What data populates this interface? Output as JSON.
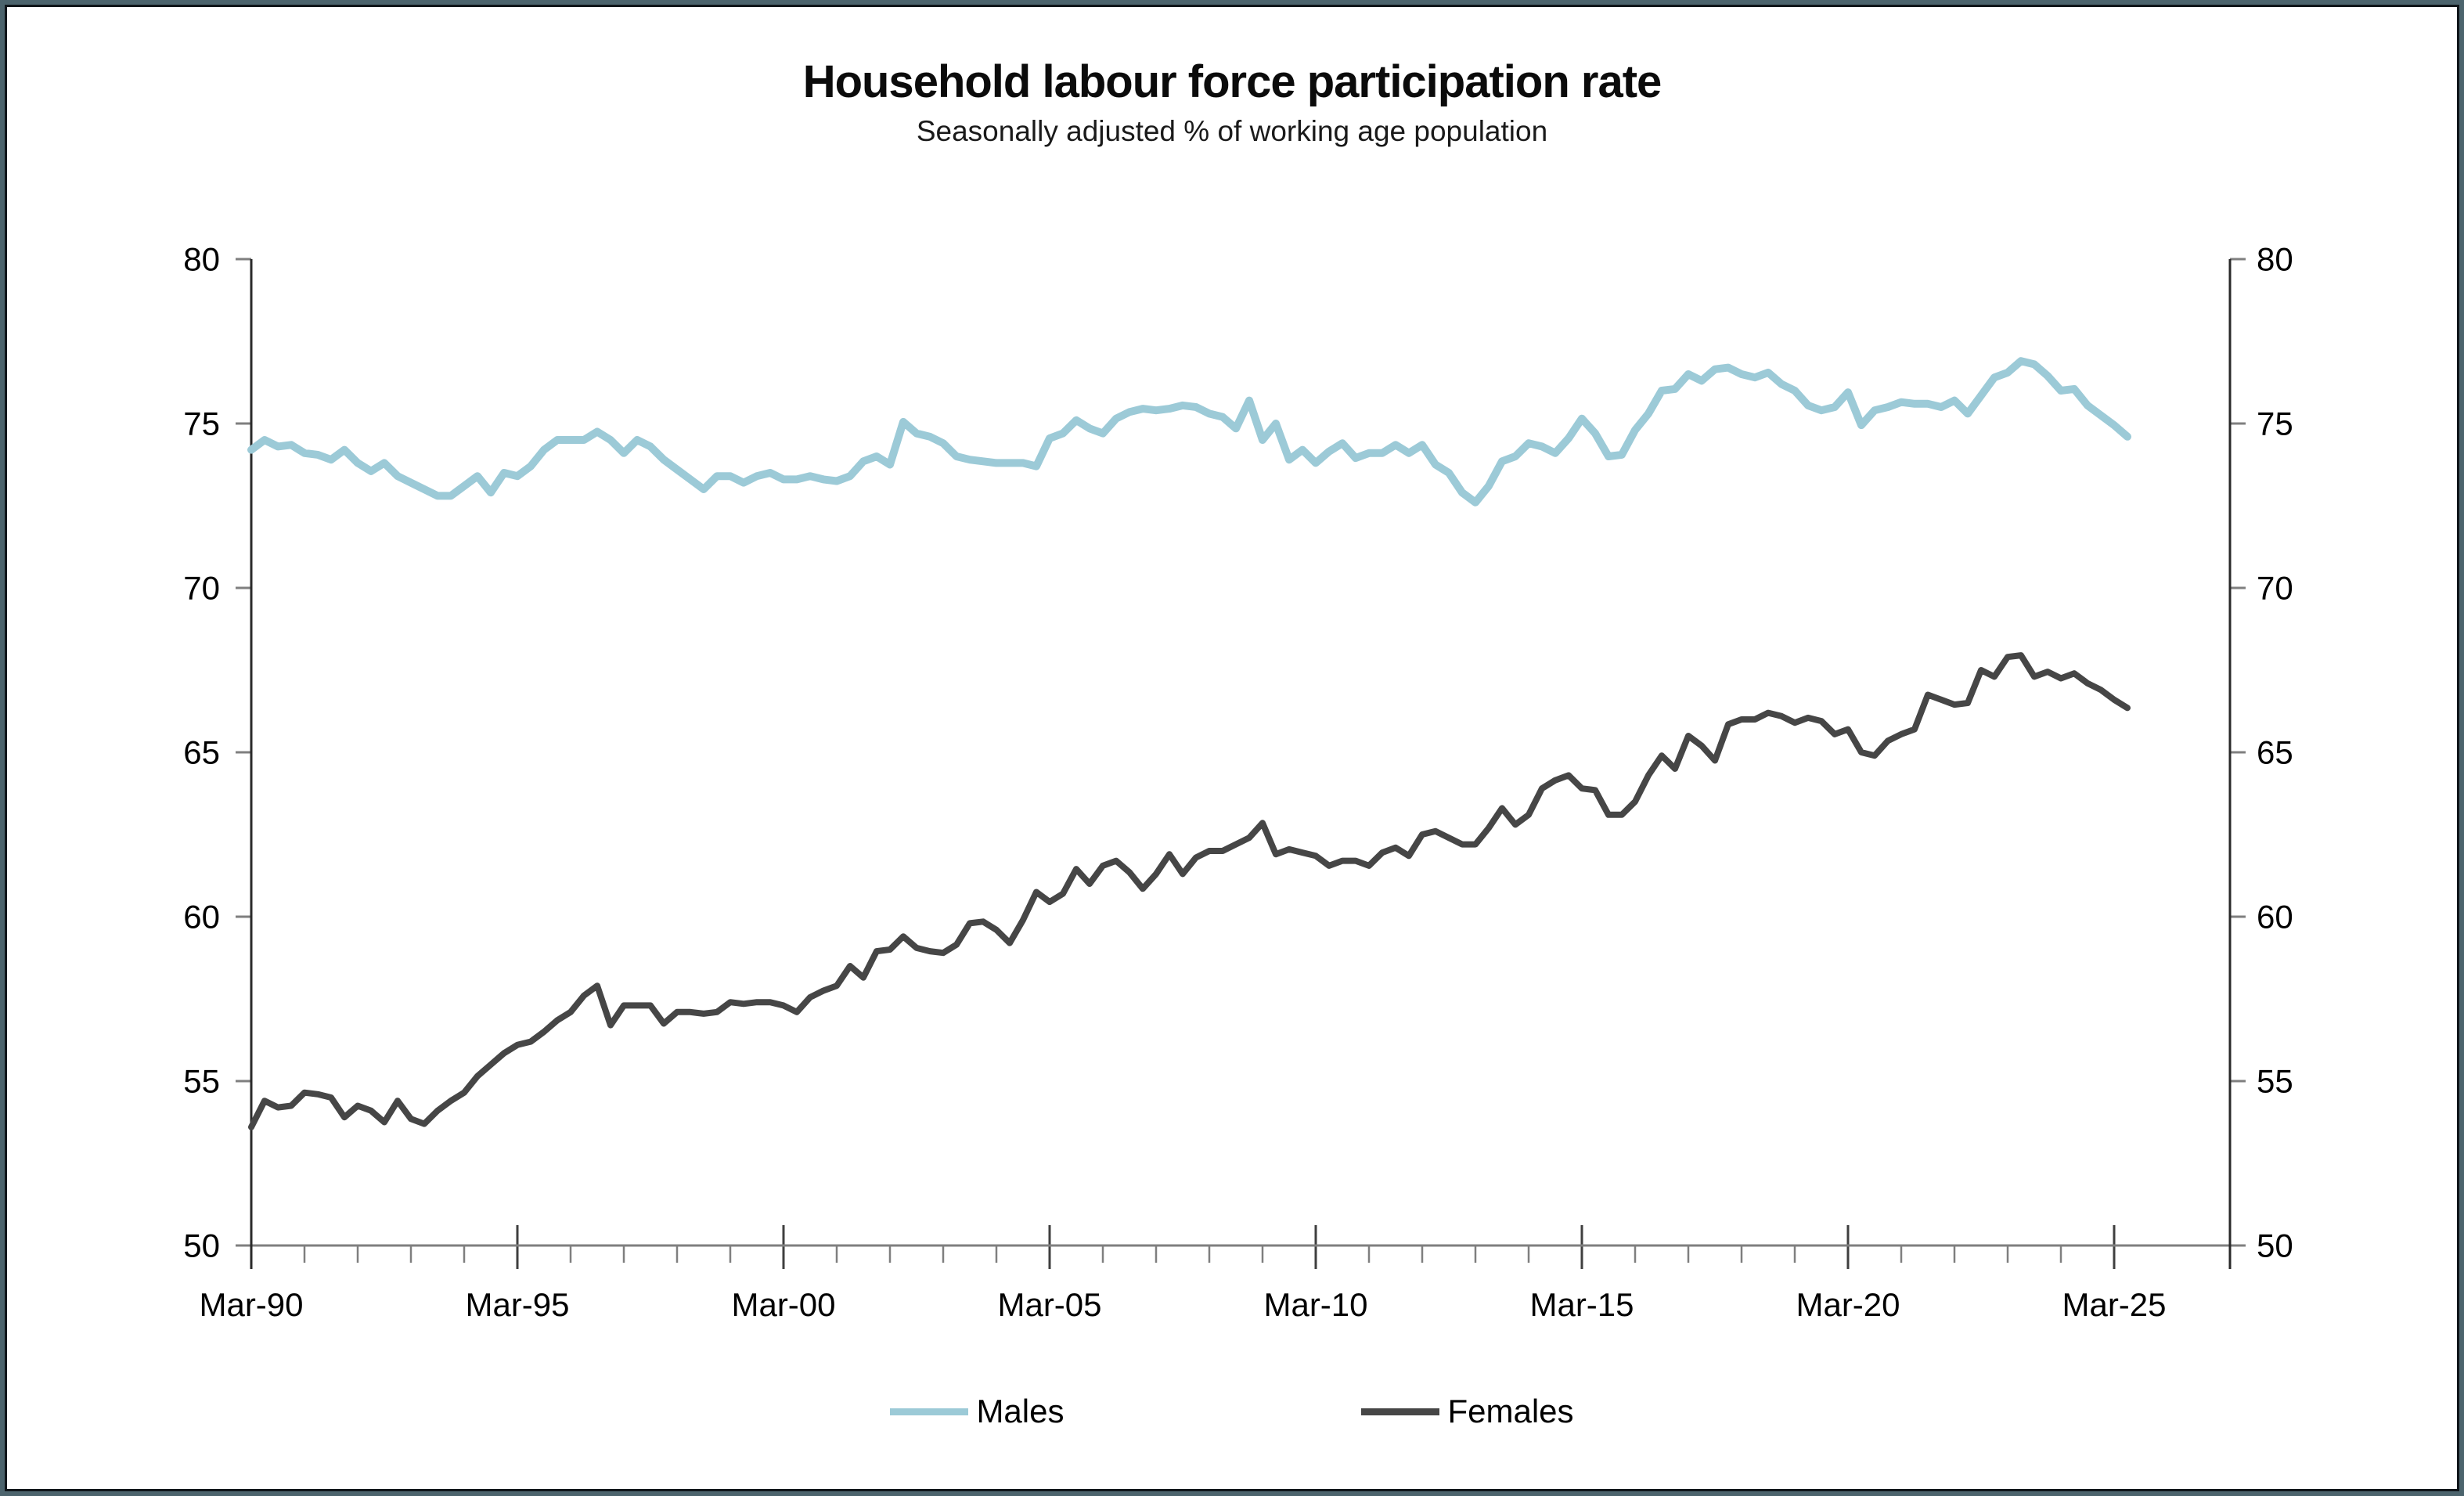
{
  "frame": {
    "outer_border_color": "#4c646d",
    "inner_border_color": "#10161a",
    "background": "#ffffff"
  },
  "header": {
    "title": "Household labour force participation rate",
    "subtitle": "Seasonally adjusted % of working age population"
  },
  "chart_data": {
    "type": "line",
    "title": "Household labour force participation rate",
    "subtitle": "Seasonally adjusted % of working age population",
    "xlabel": "",
    "ylabel": "",
    "ylim": [
      50,
      80
    ],
    "y_ticks": [
      50,
      55,
      60,
      65,
      70,
      75,
      80
    ],
    "y_axis_sides": "both",
    "grid": false,
    "legend_position": "bottom",
    "axis_color": "#2a2a2a",
    "tick_color": "#7f7f7f",
    "x_start": "Mar-90",
    "x_end": "Jun-25",
    "frequency": "quarterly",
    "x_tick_labels": [
      "Mar-90",
      "Mar-95",
      "Mar-00",
      "Mar-05",
      "Mar-10",
      "Mar-15",
      "Mar-20",
      "Mar-25"
    ],
    "x_minor_tick_every_quarters": 4,
    "x_major_tick_every_quarters": 20,
    "series": [
      {
        "name": "Males",
        "color": "#9ccad7",
        "stroke_width": 10,
        "values": [
          74.2,
          74.5,
          74.3,
          74.35,
          74.1,
          74.05,
          73.9,
          74.2,
          73.8,
          73.55,
          73.8,
          73.4,
          73.2,
          73.0,
          72.8,
          72.8,
          73.1,
          73.4,
          72.9,
          73.5,
          73.4,
          73.7,
          74.2,
          74.5,
          74.5,
          74.5,
          74.75,
          74.5,
          74.1,
          74.5,
          74.3,
          73.9,
          73.6,
          73.3,
          73.0,
          73.4,
          73.4,
          73.2,
          73.4,
          73.5,
          73.3,
          73.3,
          73.4,
          73.3,
          73.25,
          73.4,
          73.85,
          74.0,
          73.75,
          75.05,
          74.7,
          74.6,
          74.4,
          74.0,
          73.9,
          73.85,
          73.8,
          73.8,
          73.8,
          73.7,
          74.55,
          74.7,
          75.1,
          74.85,
          74.7,
          75.15,
          75.35,
          75.45,
          75.4,
          75.45,
          75.55,
          75.5,
          75.3,
          75.2,
          74.85,
          75.7,
          74.5,
          75.0,
          73.9,
          74.2,
          73.8,
          74.15,
          74.4,
          73.95,
          74.1,
          74.1,
          74.35,
          74.1,
          74.35,
          73.75,
          73.5,
          72.9,
          72.6,
          73.1,
          73.85,
          74.0,
          74.4,
          74.3,
          74.1,
          74.55,
          75.15,
          74.7,
          74.0,
          74.05,
          74.8,
          75.3,
          76.0,
          76.05,
          76.5,
          76.3,
          76.65,
          76.7,
          76.5,
          76.4,
          76.55,
          76.2,
          76.0,
          75.55,
          75.4,
          75.5,
          75.95,
          74.95,
          75.4,
          75.5,
          75.65,
          75.6,
          75.6,
          75.5,
          75.7,
          75.3,
          75.85,
          76.4,
          76.55,
          76.9,
          76.8,
          76.45,
          76.0,
          76.05,
          75.55,
          75.25,
          74.95,
          74.6
        ]
      },
      {
        "name": "Females",
        "color": "#464646",
        "stroke_width": 8,
        "values": [
          53.6,
          54.4,
          54.2,
          54.25,
          54.65,
          54.6,
          54.5,
          53.9,
          54.25,
          54.1,
          53.75,
          54.4,
          53.85,
          53.7,
          54.1,
          54.4,
          54.65,
          55.15,
          55.5,
          55.85,
          56.1,
          56.2,
          56.5,
          56.85,
          57.1,
          57.6,
          57.9,
          56.7,
          57.3,
          57.3,
          57.3,
          56.75,
          57.1,
          57.1,
          57.05,
          57.1,
          57.4,
          57.35,
          57.4,
          57.4,
          57.3,
          57.1,
          57.55,
          57.75,
          57.9,
          58.5,
          58.15,
          58.95,
          59.0,
          59.4,
          59.05,
          58.95,
          58.9,
          59.15,
          59.8,
          59.85,
          59.6,
          59.2,
          59.9,
          60.75,
          60.45,
          60.7,
          61.45,
          61.0,
          61.55,
          61.7,
          61.35,
          60.85,
          61.3,
          61.9,
          61.3,
          61.8,
          62.0,
          62.0,
          62.2,
          62.4,
          62.85,
          61.9,
          62.05,
          61.95,
          61.85,
          61.55,
          61.7,
          61.7,
          61.55,
          61.95,
          62.1,
          61.85,
          62.5,
          62.6,
          62.4,
          62.2,
          62.2,
          62.7,
          63.3,
          62.8,
          63.1,
          63.9,
          64.15,
          64.3,
          63.9,
          63.85,
          63.1,
          63.1,
          63.5,
          64.3,
          64.9,
          64.5,
          65.5,
          65.2,
          64.75,
          65.85,
          66.0,
          66.0,
          66.2,
          66.1,
          65.9,
          66.05,
          65.95,
          65.55,
          65.7,
          65.0,
          64.9,
          65.35,
          65.55,
          65.7,
          66.75,
          66.6,
          66.45,
          66.5,
          67.5,
          67.3,
          67.9,
          67.95,
          67.3,
          67.45,
          67.25,
          67.4,
          67.1,
          66.9,
          66.6,
          66.35
        ]
      }
    ]
  }
}
